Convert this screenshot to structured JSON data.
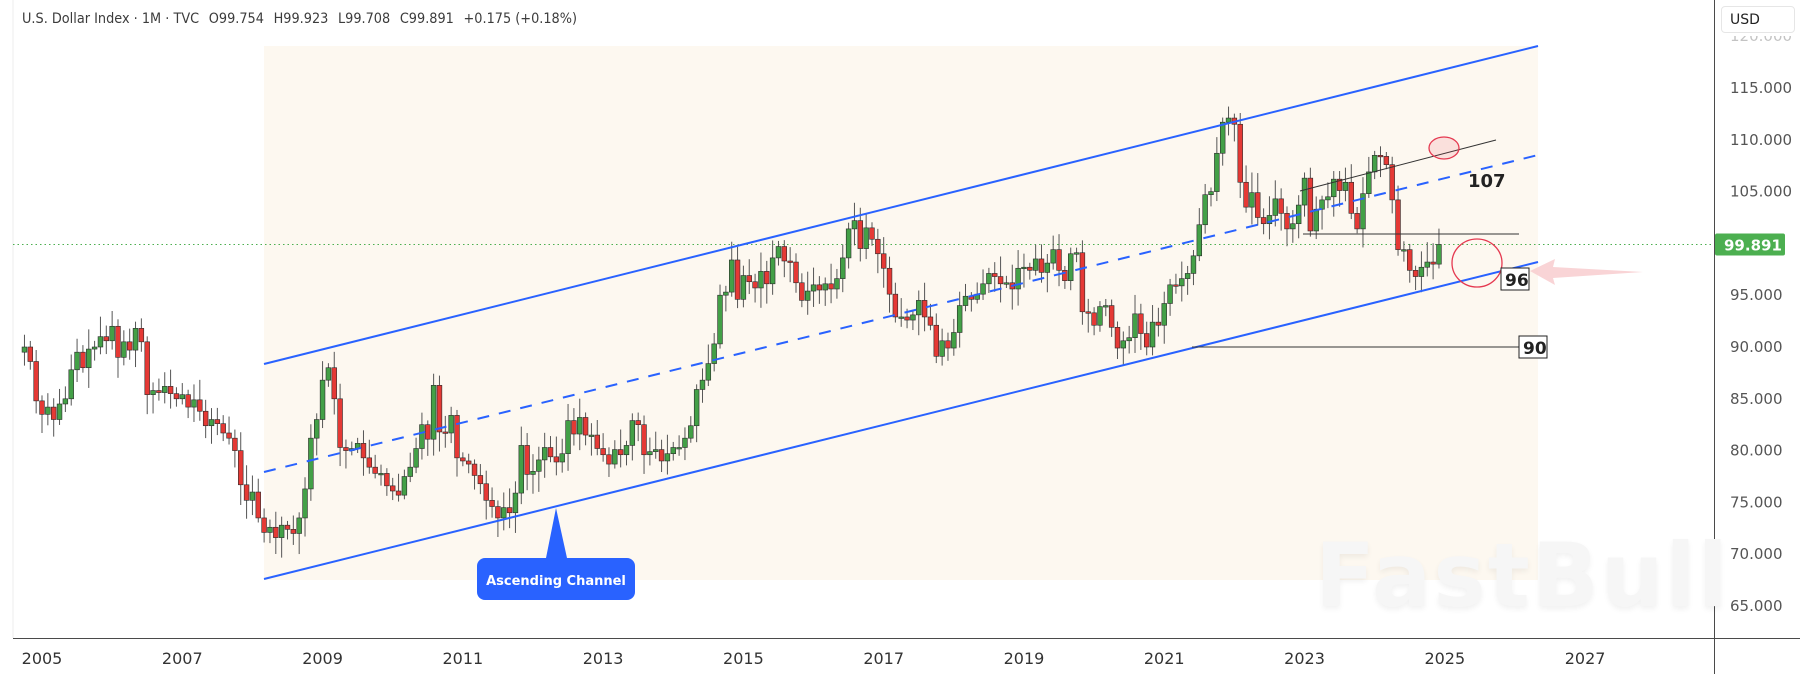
{
  "header": {
    "symbol": "U.S. Dollar Index",
    "interval": "1M",
    "source": "TVC",
    "legend_text": "U.S. Dollar Index · 1M · TVC",
    "open": "O99.754",
    "high": "H99.923",
    "low": "L99.708",
    "close": "C99.891",
    "change": "+0.175 (+0.18%)"
  },
  "currency_button": {
    "label": "USD"
  },
  "watermark": {
    "text": "FastBull"
  },
  "colors": {
    "up": "#43a047",
    "down": "#e53935",
    "candle_border": "#2b2b2b",
    "channel": "#2962ff",
    "channel_fill": "#fdf8f0",
    "price_badge": "#4caf50",
    "annotation_red": "#e53950",
    "arrow_pink": "#f8c9cc",
    "callout_bg": "#2962ff"
  },
  "price_axis": {
    "labels": [
      "120.000",
      "115.000",
      "110.000",
      "105.000",
      "95.000",
      "90.000",
      "85.000",
      "80.000",
      "75.000",
      "70.000",
      "65.000"
    ],
    "current_price_label": "99.891"
  },
  "time_axis": {
    "labels": [
      "2005",
      "2007",
      "2009",
      "2011",
      "2013",
      "2015",
      "2017",
      "2019",
      "2021",
      "2023",
      "2025",
      "2027"
    ]
  },
  "annotations": {
    "callout": "Ascending Channel",
    "label_107": "107",
    "label_96": "96",
    "label_90": "90"
  },
  "chart_data": {
    "type": "candlestick",
    "title": "U.S. Dollar Index · 1M · TVC",
    "xlabel": "",
    "ylabel": "USD",
    "ylim": [
      62,
      121
    ],
    "xlim": [
      2004.6,
      2028.2
    ],
    "interval": "monthly",
    "last": {
      "open": 99.754,
      "high": 99.923,
      "low": 99.708,
      "close": 99.891,
      "change": 0.175,
      "change_pct": 0.18
    },
    "closes_monthly_from_2004_10": [
      90.0,
      88.6,
      84.8,
      83.5,
      84.2,
      83.0,
      84.5,
      85.0,
      87.8,
      89.5,
      88.0,
      89.8,
      90.0,
      91.0,
      90.6,
      92.0,
      89.0,
      90.5,
      89.7,
      91.8,
      90.5,
      85.4,
      85.8,
      85.6,
      86.2,
      85.5,
      85.0,
      85.4,
      84.2,
      84.9,
      83.8,
      82.4,
      83.0,
      82.6,
      81.7,
      81.2,
      80.0,
      76.7,
      75.2,
      76.0,
      73.5,
      72.1,
      72.6,
      71.6,
      72.8,
      72.4,
      72.0,
      73.5,
      76.3,
      81.2,
      83.0,
      86.8,
      88.0,
      85.0,
      80.3,
      80.0,
      80.2,
      80.7,
      79.3,
      78.4,
      77.8,
      77.8,
      76.6,
      76.1,
      75.7,
      77.5,
      78.4,
      80.2,
      82.5,
      81.1,
      86.3,
      81.8,
      81.7,
      83.4,
      79.3,
      79.0,
      78.7,
      77.6,
      76.8,
      75.2,
      74.6,
      73.5,
      74.5,
      74.0,
      75.9,
      80.5,
      77.7,
      78.0,
      79.1,
      80.3,
      79.4,
      78.9,
      79.7,
      82.9,
      81.6,
      83.2,
      81.5,
      81.5,
      80.2,
      79.6,
      78.7,
      80.1,
      79.6,
      80.5,
      82.9,
      82.5,
      79.6,
      79.9,
      80.1,
      79.0,
      79.7,
      80.3,
      80.3,
      81.2,
      82.4,
      85.9,
      86.8,
      88.4,
      90.3,
      95.0,
      95.3,
      98.4,
      94.6,
      96.9,
      96.3,
      95.7,
      97.3,
      96.1,
      98.6,
      99.7,
      98.3,
      98.2,
      96.2,
      94.5,
      95.4,
      96.0,
      95.5,
      96.1,
      95.6,
      96.6,
      98.6,
      101.4,
      102.2,
      99.5,
      101.5,
      100.4,
      99.0,
      97.6,
      95.1,
      92.9,
      92.9,
      92.6,
      93.1,
      94.5,
      92.9,
      92.1,
      89.1,
      90.6,
      89.9,
      91.4,
      94.0,
      94.9,
      94.6,
      95.1,
      96.1,
      97.1,
      96.8,
      96.1,
      96.2,
      95.6,
      97.6,
      97.7,
      97.4,
      98.5,
      97.2,
      98.1,
      99.4,
      97.4,
      96.4,
      99.0,
      99.1,
      93.4,
      93.3,
      92.1,
      93.9,
      94.0,
      91.9,
      89.9,
      90.6,
      90.9,
      93.2,
      91.3,
      90.0,
      92.4,
      92.1,
      94.2,
      96.0,
      95.9,
      96.6,
      97.1,
      98.8,
      101.8,
      104.7,
      105.0,
      108.7,
      111.7,
      112.1,
      111.5,
      105.9,
      103.5,
      104.9,
      102.5,
      101.9,
      102.7,
      104.3,
      102.9,
      101.4,
      101.9,
      103.7,
      106.3,
      101.2,
      103.3,
      104.2,
      104.5,
      106.2,
      105.1,
      105.9,
      102.9,
      101.4,
      104.8,
      106.9,
      108.5,
      108.4,
      107.6,
      104.2,
      99.4,
      99.4,
      97.4,
      96.8,
      97.7,
      98.2,
      98.0,
      99.9
    ]
  }
}
